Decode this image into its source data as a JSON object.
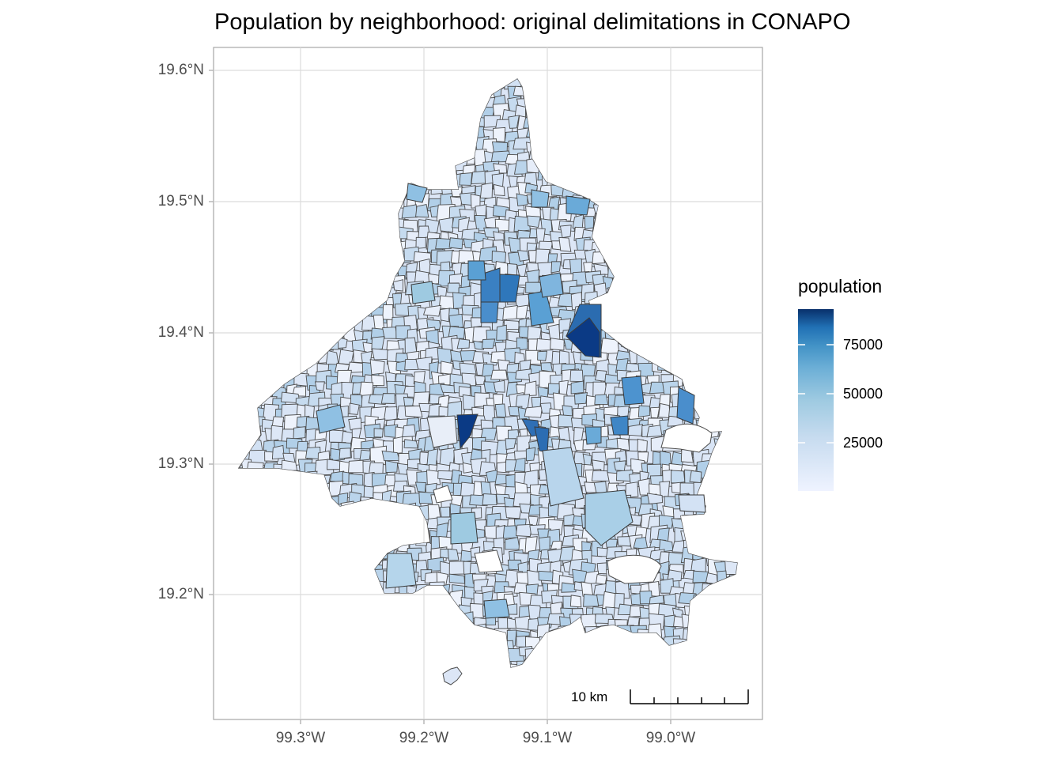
{
  "title": "Population by neighborhood: original delimitations in CONAPO",
  "axes": {
    "y_ticks": [
      "19.6°N",
      "19.5°N",
      "19.4°N",
      "19.3°N",
      "19.2°N"
    ],
    "x_ticks": [
      "99.3°W",
      "99.2°W",
      "99.1°W",
      "99.0°W"
    ]
  },
  "legend": {
    "title": "population",
    "ticks": [
      "75000",
      "50000",
      "25000"
    ],
    "colors": [
      "#eff3ff",
      "#c6dbef",
      "#9ecae1",
      "#6baed6",
      "#4292c6",
      "#2171b5",
      "#08306b"
    ]
  },
  "scale_bar": {
    "label": "10 km"
  },
  "colors": {
    "outline": "#4d4d4d",
    "grid": "#dcdcdc",
    "panel_border": "#a6a6a6"
  }
}
